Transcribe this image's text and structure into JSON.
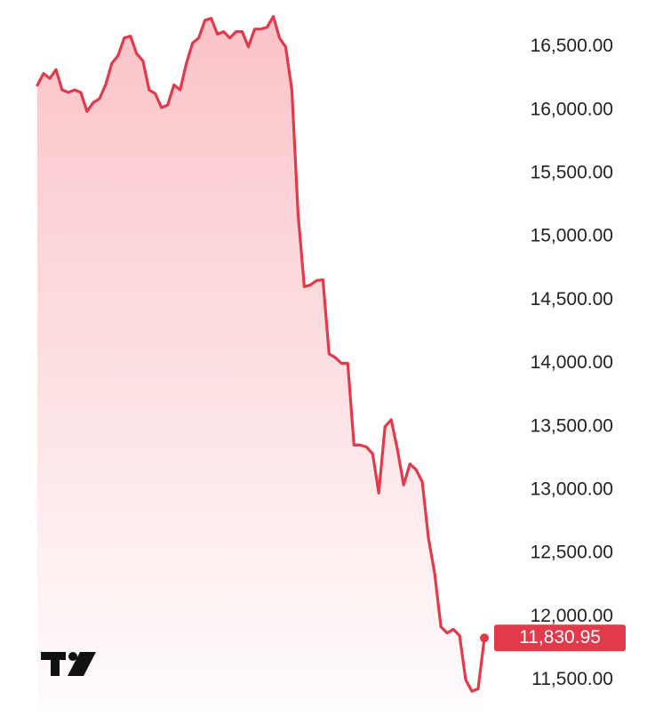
{
  "chart_data": {
    "type": "area",
    "color": "#e23a4a",
    "values": [
      16198,
      16290,
      16250,
      16320,
      16160,
      16140,
      16160,
      16140,
      15990,
      16060,
      16090,
      16200,
      16370,
      16430,
      16570,
      16585,
      16445,
      16390,
      16160,
      16130,
      16020,
      16040,
      16200,
      16160,
      16370,
      16530,
      16570,
      16710,
      16725,
      16600,
      16620,
      16570,
      16620,
      16620,
      16500,
      16640,
      16640,
      16655,
      16740,
      16570,
      16500,
      16160,
      15180,
      14605,
      14620,
      14655,
      14660,
      14075,
      14045,
      14000,
      14000,
      13355,
      13355,
      13340,
      13285,
      12975,
      13500,
      13555,
      13320,
      13040,
      13205,
      13160,
      13065,
      12620,
      12340,
      11920,
      11870,
      11900,
      11850,
      11500,
      11410,
      11430,
      11830.95
    ],
    "last_label": "11,830.95",
    "ylim": [
      11250,
      16870
    ],
    "yticks": [
      {
        "value": 11500,
        "label": "11,500.00"
      },
      {
        "value": 12000,
        "label": "12,000.00"
      },
      {
        "value": 12500,
        "label": "12,500.00"
      },
      {
        "value": 13000,
        "label": "13,000.00"
      },
      {
        "value": 13500,
        "label": "13,500.00"
      },
      {
        "value": 14000,
        "label": "14,000.00"
      },
      {
        "value": 14500,
        "label": "14,500.00"
      },
      {
        "value": 15000,
        "label": "15,000.00"
      },
      {
        "value": 15500,
        "label": "15,500.00"
      },
      {
        "value": 16000,
        "label": "16,000.00"
      },
      {
        "value": 16500,
        "label": "16,500.00"
      }
    ]
  }
}
